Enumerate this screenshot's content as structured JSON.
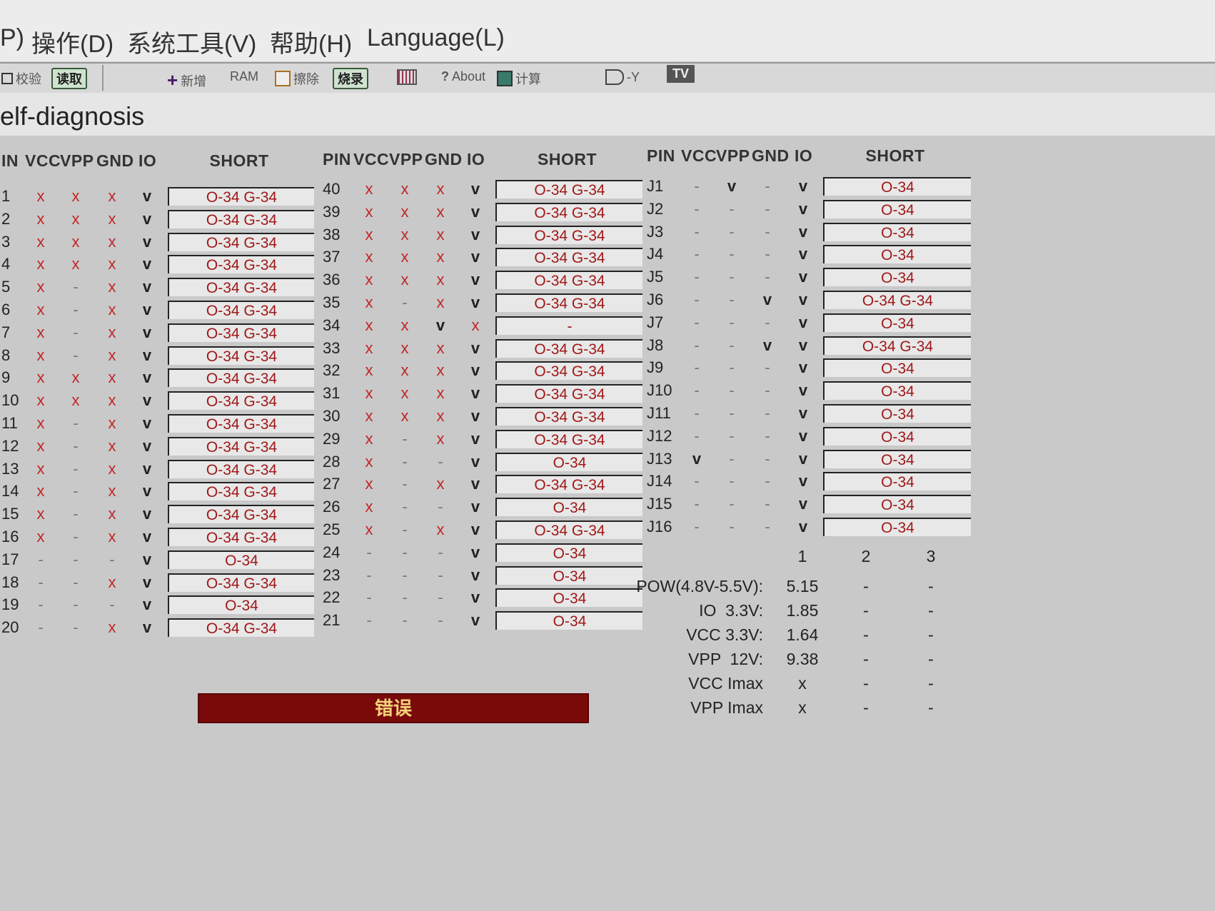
{
  "menu": [
    "P)",
    "操作(D)",
    "系统工具(V)",
    "帮助(H)",
    "Language(L)"
  ],
  "toolbar": {
    "verify": "校验",
    "read": "读取",
    "add": "新增",
    "ram": "RAM",
    "erase": "擦除",
    "program": "烧录",
    "about": "About",
    "calc": "计算",
    "logic": "-Y",
    "tv": "TV"
  },
  "title": "elf-diagnosis",
  "headers": {
    "pin_left": "IN",
    "pin": "PIN",
    "vcc": "VCC",
    "vpp": "VPP",
    "gnd": "GND",
    "io": "IO",
    "short": "SHORT"
  },
  "tables": [
    {
      "rows": [
        [
          "1",
          "x",
          "x",
          "x",
          "v",
          "O-34 G-34"
        ],
        [
          "2",
          "x",
          "x",
          "x",
          "v",
          "O-34 G-34"
        ],
        [
          "3",
          "x",
          "x",
          "x",
          "v",
          "O-34 G-34"
        ],
        [
          "4",
          "x",
          "x",
          "x",
          "v",
          "O-34 G-34"
        ],
        [
          "5",
          "x",
          "-",
          "x",
          "v",
          "O-34 G-34"
        ],
        [
          "6",
          "x",
          "-",
          "x",
          "v",
          "O-34 G-34"
        ],
        [
          "7",
          "x",
          "-",
          "x",
          "v",
          "O-34 G-34"
        ],
        [
          "8",
          "x",
          "-",
          "x",
          "v",
          "O-34 G-34"
        ],
        [
          "9",
          "x",
          "x",
          "x",
          "v",
          "O-34 G-34"
        ],
        [
          "10",
          "x",
          "x",
          "x",
          "v",
          "O-34 G-34"
        ],
        [
          "11",
          "x",
          "-",
          "x",
          "v",
          "O-34 G-34"
        ],
        [
          "12",
          "x",
          "-",
          "x",
          "v",
          "O-34 G-34"
        ],
        [
          "13",
          "x",
          "-",
          "x",
          "v",
          "O-34 G-34"
        ],
        [
          "14",
          "x",
          "-",
          "x",
          "v",
          "O-34 G-34"
        ],
        [
          "15",
          "x",
          "-",
          "x",
          "v",
          "O-34 G-34"
        ],
        [
          "16",
          "x",
          "-",
          "x",
          "v",
          "O-34 G-34"
        ],
        [
          "17",
          "-",
          "-",
          "-",
          "v",
          "O-34"
        ],
        [
          "18",
          "-",
          "-",
          "x",
          "v",
          "O-34 G-34"
        ],
        [
          "19",
          "-",
          "-",
          "-",
          "v",
          "O-34"
        ],
        [
          "20",
          "-",
          "-",
          "x",
          "v",
          "O-34 G-34"
        ]
      ]
    },
    {
      "rows": [
        [
          "40",
          "x",
          "x",
          "x",
          "v",
          "O-34 G-34"
        ],
        [
          "39",
          "x",
          "x",
          "x",
          "v",
          "O-34 G-34"
        ],
        [
          "38",
          "x",
          "x",
          "x",
          "v",
          "O-34 G-34"
        ],
        [
          "37",
          "x",
          "x",
          "x",
          "v",
          "O-34 G-34"
        ],
        [
          "36",
          "x",
          "x",
          "x",
          "v",
          "O-34 G-34"
        ],
        [
          "35",
          "x",
          "-",
          "x",
          "v",
          "O-34 G-34"
        ],
        [
          "34",
          "x",
          "x",
          "v",
          "x",
          "-"
        ],
        [
          "33",
          "x",
          "x",
          "x",
          "v",
          "O-34 G-34"
        ],
        [
          "32",
          "x",
          "x",
          "x",
          "v",
          "O-34 G-34"
        ],
        [
          "31",
          "x",
          "x",
          "x",
          "v",
          "O-34 G-34"
        ],
        [
          "30",
          "x",
          "x",
          "x",
          "v",
          "O-34 G-34"
        ],
        [
          "29",
          "x",
          "-",
          "x",
          "v",
          "O-34 G-34"
        ],
        [
          "28",
          "x",
          "-",
          "-",
          "v",
          "O-34"
        ],
        [
          "27",
          "x",
          "-",
          "x",
          "v",
          "O-34 G-34"
        ],
        [
          "26",
          "x",
          "-",
          "-",
          "v",
          "O-34"
        ],
        [
          "25",
          "x",
          "-",
          "x",
          "v",
          "O-34 G-34"
        ],
        [
          "24",
          "-",
          "-",
          "-",
          "v",
          "O-34"
        ],
        [
          "23",
          "-",
          "-",
          "-",
          "v",
          "O-34"
        ],
        [
          "22",
          "-",
          "-",
          "-",
          "v",
          "O-34"
        ],
        [
          "21",
          "-",
          "-",
          "-",
          "v",
          "O-34"
        ]
      ]
    },
    {
      "rows": [
        [
          "J1",
          "-",
          "v",
          "-",
          "v",
          "O-34"
        ],
        [
          "J2",
          "-",
          "-",
          "-",
          "v",
          "O-34"
        ],
        [
          "J3",
          "-",
          "-",
          "-",
          "v",
          "O-34"
        ],
        [
          "J4",
          "-",
          "-",
          "-",
          "v",
          "O-34"
        ],
        [
          "J5",
          "-",
          "-",
          "-",
          "v",
          "O-34"
        ],
        [
          "J6",
          "-",
          "-",
          "v",
          "v",
          "O-34 G-34"
        ],
        [
          "J7",
          "-",
          "-",
          "-",
          "v",
          "O-34"
        ],
        [
          "J8",
          "-",
          "-",
          "v",
          "v",
          "O-34 G-34"
        ],
        [
          "J9",
          "-",
          "-",
          "-",
          "v",
          "O-34"
        ],
        [
          "J10",
          "-",
          "-",
          "-",
          "v",
          "O-34"
        ],
        [
          "J11",
          "-",
          "-",
          "-",
          "v",
          "O-34"
        ],
        [
          "J12",
          "-",
          "-",
          "-",
          "v",
          "O-34"
        ],
        [
          "J13",
          "v",
          "-",
          "-",
          "v",
          "O-34"
        ],
        [
          "J14",
          "-",
          "-",
          "-",
          "v",
          "O-34"
        ],
        [
          "J15",
          "-",
          "-",
          "-",
          "v",
          "O-34"
        ],
        [
          "J16",
          "-",
          "-",
          "-",
          "v",
          "O-34"
        ]
      ]
    }
  ],
  "power": {
    "columns": [
      "1",
      "2",
      "3"
    ],
    "rows": [
      {
        "label": "POW(4.8V-5.5V):",
        "values": [
          "5.15",
          "-",
          "-"
        ]
      },
      {
        "label": "IO  3.3V:",
        "values": [
          "1.85",
          "-",
          "-"
        ]
      },
      {
        "label": "VCC 3.3V:",
        "values": [
          "1.64",
          "-",
          "-"
        ]
      },
      {
        "label": "VPP  12V:",
        "values": [
          "9.38",
          "-",
          "-"
        ]
      },
      {
        "label": "VCC Imax",
        "values": [
          "x",
          "-",
          "-"
        ]
      },
      {
        "label": "VPP Imax",
        "values": [
          "x",
          "-",
          "-"
        ]
      }
    ]
  },
  "status": "错误",
  "colors": {
    "fail": "#c0282a",
    "error_bar": "#7a0a0a"
  }
}
